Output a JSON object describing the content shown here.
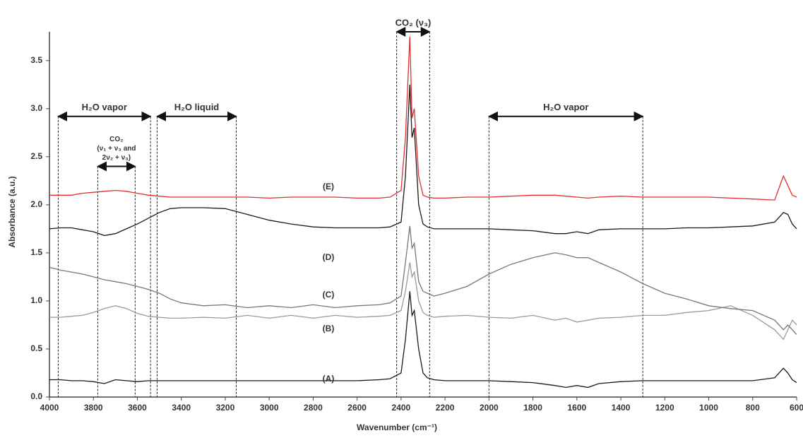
{
  "chart_data": {
    "type": "line",
    "x_label": "Wavenumber (cm⁻¹)",
    "y_label": "Absorbance (a.u.)",
    "x": [
      4000,
      3950,
      3900,
      3850,
      3800,
      3750,
      3700,
      3650,
      3600,
      3550,
      3500,
      3450,
      3400,
      3300,
      3200,
      3100,
      3000,
      2900,
      2800,
      2700,
      2600,
      2500,
      2450,
      2400,
      2380,
      2360,
      2350,
      2340,
      2320,
      2300,
      2280,
      2250,
      2200,
      2100,
      2000,
      1900,
      1800,
      1700,
      1650,
      1600,
      1550,
      1500,
      1400,
      1300,
      1200,
      1100,
      1000,
      900,
      800,
      700,
      660,
      640,
      620,
      600
    ],
    "series": [
      {
        "name": "(A)",
        "color": "#1a1a1a",
        "values": [
          0.18,
          0.18,
          0.17,
          0.17,
          0.16,
          0.14,
          0.18,
          0.17,
          0.16,
          0.17,
          0.17,
          0.17,
          0.17,
          0.17,
          0.17,
          0.17,
          0.17,
          0.17,
          0.17,
          0.17,
          0.17,
          0.18,
          0.19,
          0.25,
          0.6,
          1.1,
          0.85,
          0.9,
          0.5,
          0.25,
          0.2,
          0.18,
          0.17,
          0.17,
          0.17,
          0.16,
          0.15,
          0.12,
          0.1,
          0.12,
          0.1,
          0.14,
          0.16,
          0.17,
          0.17,
          0.17,
          0.17,
          0.17,
          0.17,
          0.2,
          0.3,
          0.25,
          0.18,
          0.15
        ]
      },
      {
        "name": "(B)",
        "color": "#9a9a9a",
        "values": [
          0.83,
          0.83,
          0.84,
          0.85,
          0.88,
          0.92,
          0.95,
          0.92,
          0.87,
          0.84,
          0.83,
          0.82,
          0.82,
          0.83,
          0.82,
          0.85,
          0.82,
          0.85,
          0.82,
          0.85,
          0.83,
          0.84,
          0.85,
          0.9,
          1.1,
          1.4,
          1.25,
          1.3,
          1.0,
          0.88,
          0.85,
          0.83,
          0.84,
          0.85,
          0.83,
          0.82,
          0.85,
          0.8,
          0.82,
          0.78,
          0.8,
          0.82,
          0.83,
          0.85,
          0.85,
          0.88,
          0.9,
          0.95,
          0.85,
          0.7,
          0.6,
          0.7,
          0.8,
          0.75
        ]
      },
      {
        "name": "(C)",
        "color": "#777777",
        "values": [
          1.35,
          1.32,
          1.3,
          1.28,
          1.25,
          1.22,
          1.2,
          1.18,
          1.15,
          1.12,
          1.08,
          1.02,
          0.98,
          0.95,
          0.96,
          0.93,
          0.95,
          0.93,
          0.96,
          0.93,
          0.95,
          0.96,
          0.98,
          1.05,
          1.4,
          1.78,
          1.55,
          1.6,
          1.2,
          1.1,
          1.08,
          1.05,
          1.08,
          1.15,
          1.28,
          1.38,
          1.45,
          1.5,
          1.48,
          1.45,
          1.45,
          1.4,
          1.3,
          1.18,
          1.08,
          1.02,
          0.95,
          0.92,
          0.9,
          0.8,
          0.7,
          0.75,
          0.7,
          0.65
        ]
      },
      {
        "name": "(D)",
        "color": "#1a1a1a",
        "values": [
          1.75,
          1.76,
          1.76,
          1.74,
          1.72,
          1.68,
          1.7,
          1.75,
          1.8,
          1.86,
          1.92,
          1.96,
          1.97,
          1.97,
          1.96,
          1.9,
          1.84,
          1.8,
          1.77,
          1.76,
          1.76,
          1.76,
          1.77,
          1.82,
          2.3,
          3.25,
          2.7,
          2.8,
          2.0,
          1.8,
          1.77,
          1.75,
          1.75,
          1.75,
          1.75,
          1.74,
          1.73,
          1.7,
          1.7,
          1.72,
          1.7,
          1.74,
          1.75,
          1.75,
          1.75,
          1.76,
          1.76,
          1.77,
          1.78,
          1.82,
          1.92,
          1.9,
          1.8,
          1.75
        ]
      },
      {
        "name": "(E)",
        "color": "#e03030",
        "values": [
          2.1,
          2.1,
          2.1,
          2.12,
          2.13,
          2.14,
          2.15,
          2.14,
          2.12,
          2.1,
          2.09,
          2.08,
          2.08,
          2.08,
          2.08,
          2.08,
          2.07,
          2.08,
          2.08,
          2.08,
          2.07,
          2.07,
          2.08,
          2.15,
          2.7,
          3.75,
          2.9,
          3.0,
          2.3,
          2.1,
          2.08,
          2.07,
          2.07,
          2.08,
          2.08,
          2.09,
          2.1,
          2.1,
          2.09,
          2.08,
          2.07,
          2.08,
          2.09,
          2.08,
          2.08,
          2.08,
          2.08,
          2.07,
          2.06,
          2.05,
          2.3,
          2.2,
          2.1,
          2.08
        ]
      }
    ],
    "annotations": [
      {
        "text": [
          "H₂O vapor"
        ],
        "x": [
          3960,
          3540
        ],
        "y": 2.92
      },
      {
        "text": [
          "H₂O liquid"
        ],
        "x": [
          3510,
          3150
        ],
        "y": 2.92
      },
      {
        "text": [
          "CO₂",
          "(ν₁ + ν₃ and",
          "2ν₂ + ν₃)"
        ],
        "x": [
          3780,
          3610
        ],
        "y": 2.4
      },
      {
        "text": [
          "CO₂ (ν₃)"
        ],
        "x": [
          2420,
          2270
        ],
        "y": 3.8
      },
      {
        "text": [
          "H₂O vapor"
        ],
        "x": [
          2000,
          1300
        ],
        "y": 2.92
      }
    ],
    "xlim": [
      4000,
      600
    ],
    "xticks": [
      4000,
      3800,
      3600,
      3400,
      3200,
      3000,
      2800,
      2600,
      2400,
      2200,
      2000,
      1800,
      1600,
      1400,
      1200,
      1000,
      800,
      600
    ],
    "ylim": [
      0,
      3.8
    ],
    "yticks": [
      {
        "value": 0,
        "label": "0.0"
      },
      0.5,
      {
        "value": 1,
        "label": "1.0"
      },
      1.5,
      {
        "value": 2,
        "label": "2.0"
      },
      2.5,
      {
        "value": 3,
        "label": "3.0"
      },
      3.5
    ]
  }
}
